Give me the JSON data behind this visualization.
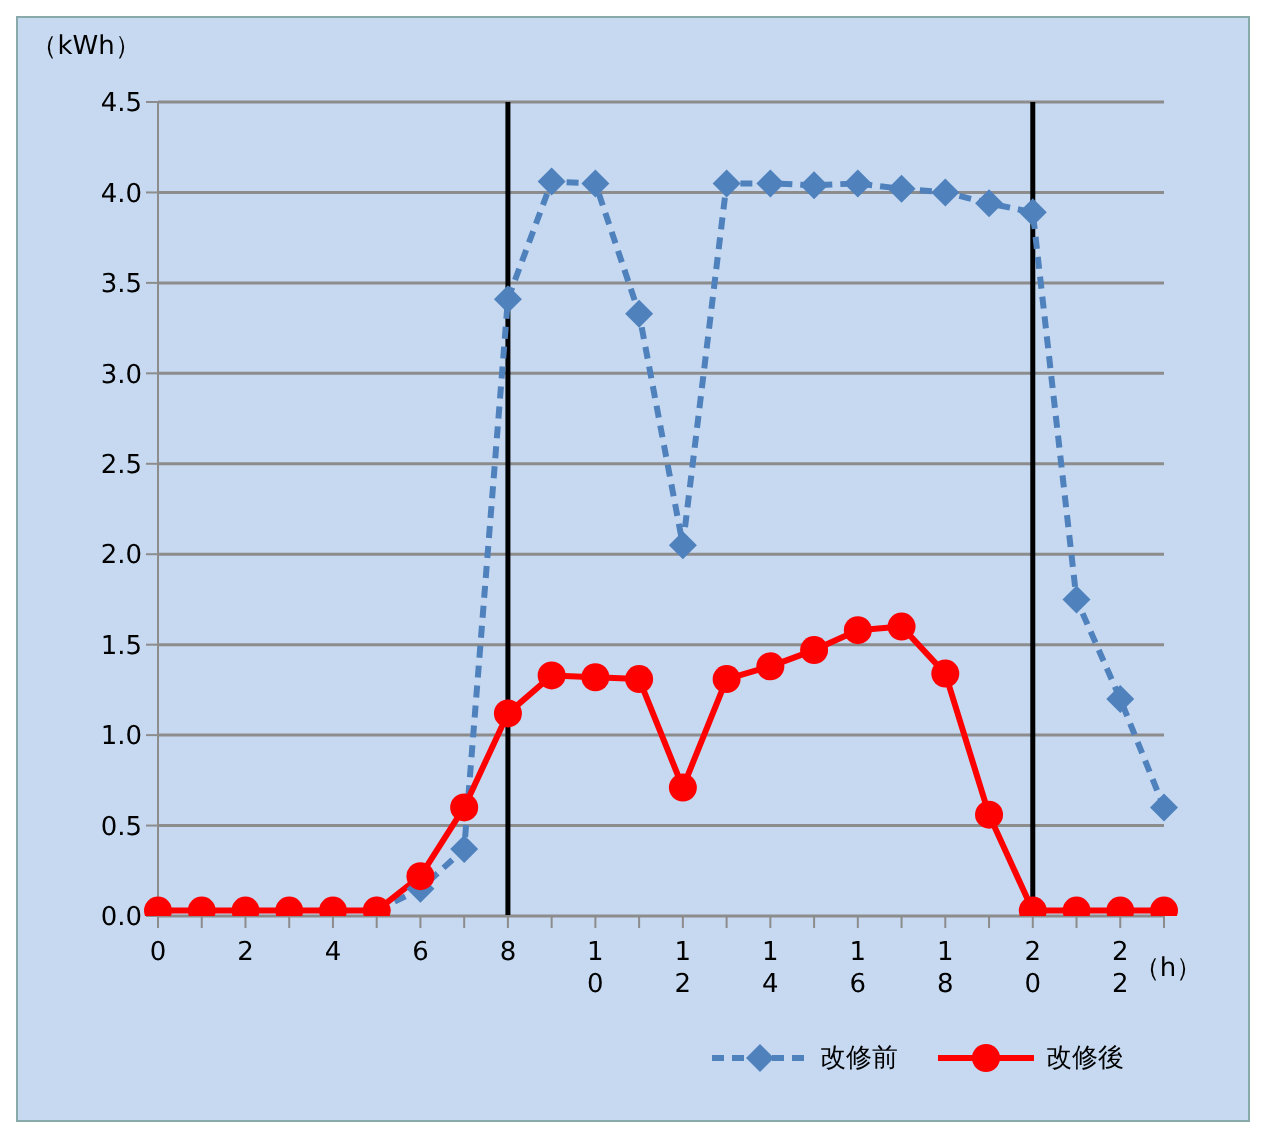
{
  "chart_data": {
    "type": "line",
    "ylabel": "（kWh）",
    "xlabel": "（h）",
    "categories": [
      "0",
      null,
      "2",
      null,
      "4",
      null,
      "6",
      null,
      "8",
      null,
      "10",
      null,
      "12",
      null,
      "14",
      null,
      "16",
      null,
      "18",
      null,
      "20",
      null,
      "22",
      null
    ],
    "series": [
      {
        "name": "改修前",
        "color": "#4f81bd",
        "marker": "diamond",
        "line_style": "dashed",
        "values": [
          null,
          null,
          null,
          null,
          null,
          0.03,
          0.15,
          0.37,
          3.41,
          4.06,
          4.05,
          3.33,
          2.05,
          4.05,
          4.05,
          4.04,
          4.05,
          4.02,
          4.0,
          3.94,
          3.89,
          1.75,
          1.2,
          0.6
        ]
      },
      {
        "name": "改修後",
        "color": "#ff0000",
        "marker": "circle",
        "line_style": "solid",
        "values": [
          0.03,
          0.03,
          0.03,
          0.03,
          0.03,
          0.03,
          0.22,
          0.6,
          1.12,
          1.33,
          1.32,
          1.31,
          0.71,
          1.31,
          1.38,
          1.47,
          1.58,
          1.6,
          1.34,
          0.56,
          0.03,
          0.03,
          0.03,
          0.03
        ]
      }
    ],
    "ylim": [
      0,
      4.5
    ],
    "yticks": [
      {
        "value": 0,
        "label": "0.0"
      },
      {
        "value": 0.5,
        "label": "0.5"
      },
      {
        "value": 1,
        "label": "1.0"
      },
      {
        "value": 1.5,
        "label": "1.5"
      },
      {
        "value": 2,
        "label": "2.0"
      },
      {
        "value": 2.5,
        "label": "2.5"
      },
      {
        "value": 3,
        "label": "3.0"
      },
      {
        "value": 3.5,
        "label": "3.5"
      },
      {
        "value": 4,
        "label": "4.0"
      },
      {
        "value": 4.5,
        "label": "4.5"
      }
    ],
    "grid": "y",
    "legend": "bottom",
    "ref_lines": [
      {
        "axis": "x",
        "value": "8",
        "color": "#000000"
      },
      {
        "axis": "x",
        "value": "20",
        "color": "#000000"
      }
    ]
  }
}
